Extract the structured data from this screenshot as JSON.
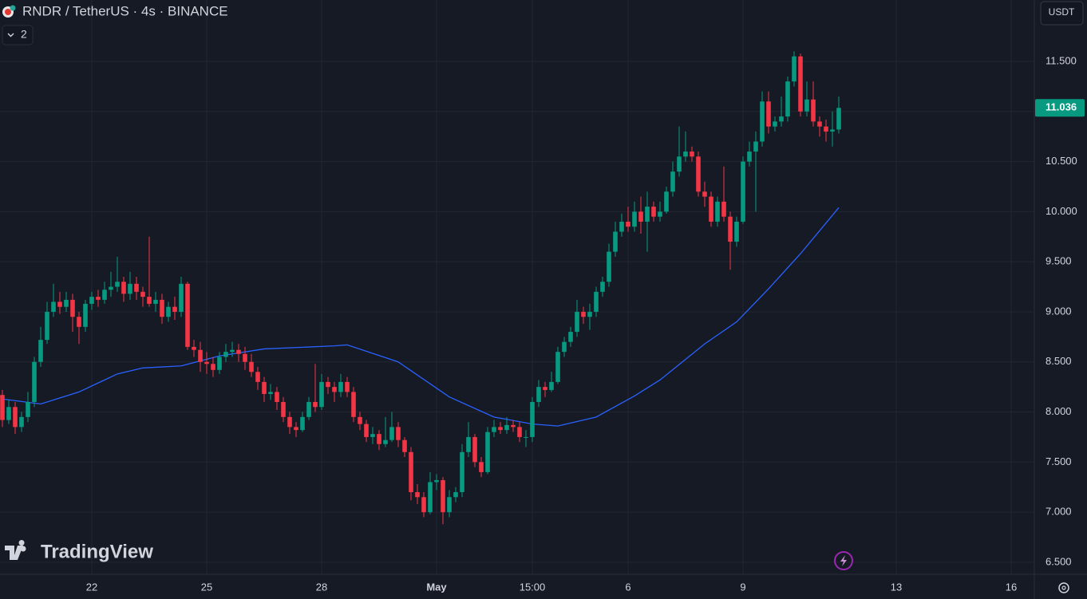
{
  "chart_data": {
    "type": "candlestick",
    "title": "RNDR / TetherUS · 4s · BINANCE",
    "indicator_count": 2,
    "currency": "USDT",
    "brand": "TradingView",
    "up_color": "#089981",
    "down_color": "#f23645",
    "grid": true,
    "xlim": [
      -0.375,
      161.5
    ],
    "ylim": [
      6.38,
      12.113
    ],
    "yticks": [
      {
        "value": 6.5,
        "label": "6.500"
      },
      {
        "value": 7,
        "label": "7.000"
      },
      {
        "value": 7.5,
        "label": "7.500"
      },
      {
        "value": 8,
        "label": "8.000"
      },
      {
        "value": 8.5,
        "label": "8.500"
      },
      {
        "value": 9,
        "label": "9.000"
      },
      {
        "value": 9.5,
        "label": "9.500"
      },
      {
        "value": 10,
        "label": "10.000"
      },
      {
        "value": 10.5,
        "label": "10.500"
      },
      {
        "value": 11,
        "label": "11.000"
      },
      {
        "value": 11.5,
        "label": "11.500"
      }
    ],
    "xticks": [
      {
        "value": 14,
        "label": "22"
      },
      {
        "value": 32,
        "label": "25"
      },
      {
        "value": 50,
        "label": "28"
      },
      {
        "value": 68,
        "label": "May"
      },
      {
        "value": 83,
        "label": "15:00"
      },
      {
        "value": 98,
        "label": "6"
      },
      {
        "value": 116,
        "label": "9"
      },
      {
        "value": 140,
        "label": "13"
      },
      {
        "value": 158,
        "label": "16"
      }
    ],
    "candles": [
      [
        8.17,
        8.22,
        7.85,
        7.92
      ],
      [
        7.92,
        8.12,
        7.88,
        8.05
      ],
      [
        8.05,
        8.1,
        7.78,
        7.85
      ],
      [
        7.85,
        8.0,
        7.8,
        7.95
      ],
      [
        7.95,
        8.2,
        7.9,
        8.1
      ],
      [
        8.1,
        8.55,
        8.05,
        8.5
      ],
      [
        8.5,
        8.85,
        8.45,
        8.72
      ],
      [
        8.72,
        9.1,
        8.68,
        9.0
      ],
      [
        9.0,
        9.28,
        8.95,
        9.1
      ],
      [
        9.1,
        9.2,
        8.98,
        9.05
      ],
      [
        9.05,
        9.2,
        9.0,
        9.12
      ],
      [
        9.12,
        9.18,
        8.8,
        8.95
      ],
      [
        8.95,
        9.0,
        8.68,
        8.85
      ],
      [
        8.85,
        9.12,
        8.8,
        9.08
      ],
      [
        9.08,
        9.2,
        9.02,
        9.15
      ],
      [
        9.15,
        9.22,
        9.05,
        9.12
      ],
      [
        9.12,
        9.3,
        9.08,
        9.22
      ],
      [
        9.22,
        9.4,
        9.15,
        9.25
      ],
      [
        9.25,
        9.55,
        9.2,
        9.3
      ],
      [
        9.3,
        9.35,
        9.1,
        9.18
      ],
      [
        9.18,
        9.4,
        9.12,
        9.28
      ],
      [
        9.28,
        9.35,
        9.12,
        9.2
      ],
      [
        9.2,
        9.25,
        9.05,
        9.15
      ],
      [
        9.15,
        9.75,
        9.05,
        9.08
      ],
      [
        9.08,
        9.2,
        9.0,
        9.12
      ],
      [
        9.12,
        9.18,
        8.88,
        8.95
      ],
      [
        8.95,
        9.1,
        8.9,
        9.05
      ],
      [
        9.05,
        9.15,
        8.92,
        9.0
      ],
      [
        9.0,
        9.35,
        8.95,
        9.28
      ],
      [
        9.28,
        9.3,
        8.62,
        8.65
      ],
      [
        8.65,
        8.72,
        8.55,
        8.62
      ],
      [
        8.62,
        8.7,
        8.4,
        8.5
      ],
      [
        8.5,
        8.6,
        8.38,
        8.48
      ],
      [
        8.48,
        8.55,
        8.35,
        8.42
      ],
      [
        8.42,
        8.6,
        8.38,
        8.55
      ],
      [
        8.55,
        8.68,
        8.5,
        8.6
      ],
      [
        8.6,
        8.7,
        8.55,
        8.62
      ],
      [
        8.62,
        8.68,
        8.5,
        8.58
      ],
      [
        8.58,
        8.65,
        8.42,
        8.5
      ],
      [
        8.5,
        8.58,
        8.35,
        8.4
      ],
      [
        8.4,
        8.45,
        8.22,
        8.3
      ],
      [
        8.3,
        8.35,
        8.1,
        8.18
      ],
      [
        8.18,
        8.28,
        8.12,
        8.2
      ],
      [
        8.2,
        8.25,
        8.02,
        8.1
      ],
      [
        8.1,
        8.15,
        7.9,
        7.95
      ],
      [
        7.95,
        8.0,
        7.78,
        7.85
      ],
      [
        7.85,
        7.9,
        7.75,
        7.82
      ],
      [
        7.82,
        8.0,
        7.8,
        7.95
      ],
      [
        7.95,
        8.15,
        7.92,
        8.1
      ],
      [
        8.1,
        8.48,
        8.0,
        8.05
      ],
      [
        8.05,
        8.38,
        8.02,
        8.3
      ],
      [
        8.3,
        8.35,
        8.18,
        8.25
      ],
      [
        8.25,
        8.3,
        8.1,
        8.2
      ],
      [
        8.2,
        8.38,
        8.15,
        8.3
      ],
      [
        8.3,
        8.35,
        8.15,
        8.2
      ],
      [
        8.2,
        8.25,
        7.9,
        7.95
      ],
      [
        7.95,
        8.0,
        7.82,
        7.88
      ],
      [
        7.88,
        7.92,
        7.7,
        7.75
      ],
      [
        7.75,
        7.85,
        7.68,
        7.78
      ],
      [
        7.78,
        7.82,
        7.62,
        7.68
      ],
      [
        7.68,
        7.95,
        7.65,
        7.72
      ],
      [
        7.72,
        8.0,
        7.7,
        7.85
      ],
      [
        7.85,
        7.9,
        7.65,
        7.72
      ],
      [
        7.72,
        7.75,
        7.55,
        7.6
      ],
      [
        7.6,
        7.65,
        7.12,
        7.2
      ],
      [
        7.2,
        7.28,
        7.08,
        7.15
      ],
      [
        7.15,
        7.2,
        6.95,
        7.0
      ],
      [
        7.0,
        7.4,
        6.98,
        7.3
      ],
      [
        7.3,
        7.38,
        7.22,
        7.32
      ],
      [
        7.32,
        7.35,
        6.88,
        7.0
      ],
      [
        7.0,
        7.22,
        6.95,
        7.15
      ],
      [
        7.15,
        7.25,
        7.1,
        7.2
      ],
      [
        7.2,
        7.68,
        7.15,
        7.6
      ],
      [
        7.6,
        7.9,
        7.55,
        7.75
      ],
      [
        7.75,
        7.78,
        7.45,
        7.5
      ],
      [
        7.5,
        7.55,
        7.35,
        7.4
      ],
      [
        7.4,
        7.85,
        7.38,
        7.8
      ],
      [
        7.8,
        7.92,
        7.75,
        7.85
      ],
      [
        7.85,
        7.9,
        7.78,
        7.82
      ],
      [
        7.82,
        7.95,
        7.78,
        7.87
      ],
      [
        7.87,
        7.92,
        7.8,
        7.85
      ],
      [
        7.85,
        7.9,
        7.7,
        7.75
      ],
      [
        7.75,
        7.82,
        7.65,
        7.75
      ],
      [
        7.75,
        8.15,
        7.7,
        8.1
      ],
      [
        8.1,
        8.32,
        8.05,
        8.25
      ],
      [
        8.25,
        8.3,
        8.15,
        8.22
      ],
      [
        8.22,
        8.4,
        8.2,
        8.3
      ],
      [
        8.3,
        8.65,
        8.28,
        8.6
      ],
      [
        8.6,
        8.75,
        8.55,
        8.7
      ],
      [
        8.7,
        8.85,
        8.65,
        8.8
      ],
      [
        8.8,
        9.12,
        8.75,
        9.0
      ],
      [
        9.0,
        9.05,
        8.88,
        8.95
      ],
      [
        8.95,
        9.08,
        8.82,
        9.0
      ],
      [
        9.0,
        9.25,
        8.95,
        9.2
      ],
      [
        9.2,
        9.35,
        9.15,
        9.3
      ],
      [
        9.3,
        9.68,
        9.25,
        9.6
      ],
      [
        9.6,
        9.9,
        9.55,
        9.8
      ],
      [
        9.8,
        9.98,
        9.75,
        9.9
      ],
      [
        9.9,
        10.05,
        9.8,
        9.85
      ],
      [
        9.85,
        10.1,
        9.8,
        10.0
      ],
      [
        10.0,
        10.15,
        9.78,
        9.9
      ],
      [
        9.9,
        10.2,
        9.6,
        10.05
      ],
      [
        10.05,
        10.1,
        9.9,
        9.95
      ],
      [
        9.95,
        10.1,
        9.9,
        10.0
      ],
      [
        10.0,
        10.25,
        9.98,
        10.2
      ],
      [
        10.2,
        10.5,
        10.15,
        10.4
      ],
      [
        10.4,
        10.85,
        10.35,
        10.55
      ],
      [
        10.55,
        10.8,
        10.5,
        10.6
      ],
      [
        10.6,
        10.65,
        10.5,
        10.55
      ],
      [
        10.55,
        10.6,
        10.15,
        10.2
      ],
      [
        10.2,
        10.3,
        10.05,
        10.15
      ],
      [
        10.15,
        10.2,
        9.85,
        9.9
      ],
      [
        9.9,
        10.15,
        9.85,
        10.1
      ],
      [
        10.1,
        10.45,
        9.9,
        9.95
      ],
      [
        9.95,
        10.0,
        9.42,
        9.7
      ],
      [
        9.7,
        9.95,
        9.65,
        9.9
      ],
      [
        9.9,
        10.55,
        9.88,
        10.5
      ],
      [
        10.5,
        10.7,
        10.45,
        10.6
      ],
      [
        10.6,
        10.8,
        10.0,
        10.7
      ],
      [
        10.7,
        11.2,
        10.65,
        11.1
      ],
      [
        11.1,
        11.2,
        10.78,
        10.85
      ],
      [
        10.85,
        10.95,
        10.8,
        10.9
      ],
      [
        10.9,
        11.15,
        10.85,
        10.95
      ],
      [
        10.95,
        11.35,
        10.9,
        11.3
      ],
      [
        11.3,
        11.6,
        11.25,
        11.55
      ],
      [
        11.55,
        11.58,
        10.95,
        11.0
      ],
      [
        11.0,
        11.3,
        10.95,
        11.12
      ],
      [
        11.12,
        11.3,
        10.85,
        10.9
      ],
      [
        10.9,
        10.95,
        10.75,
        10.85
      ],
      [
        10.85,
        10.92,
        10.7,
        10.8
      ],
      [
        10.8,
        11.0,
        10.65,
        10.82
      ],
      [
        10.82,
        11.15,
        10.78,
        11.036
      ]
    ],
    "moving_average": {
      "color": "#2962ff",
      "x": [
        0,
        6,
        12,
        18,
        22,
        28,
        34,
        41,
        52,
        54,
        62,
        70,
        77,
        83,
        87,
        93,
        99,
        103,
        110,
        115,
        120,
        125,
        131
      ],
      "values": [
        8.13,
        8.08,
        8.2,
        8.38,
        8.44,
        8.46,
        8.56,
        8.63,
        8.66,
        8.67,
        8.5,
        8.15,
        7.95,
        7.88,
        7.86,
        7.95,
        8.16,
        8.32,
        8.68,
        8.9,
        9.23,
        9.58,
        10.04
      ]
    }
  }
}
